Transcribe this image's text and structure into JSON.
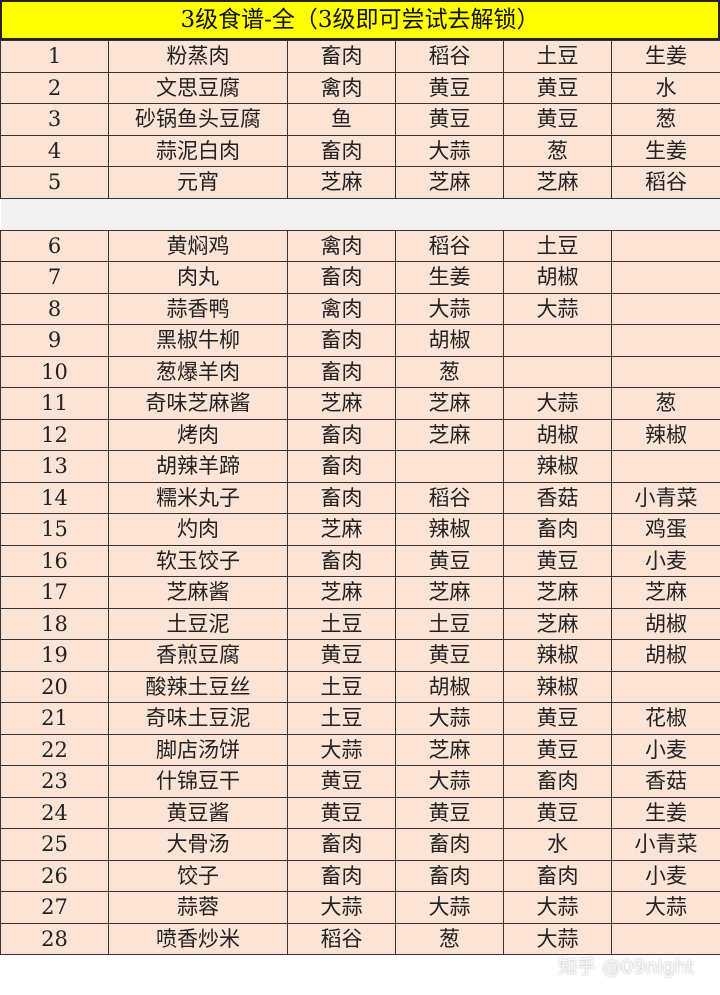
{
  "title": "3级食谱-全（3级即可尝试去解锁）",
  "watermark": "知乎 @09night",
  "colors": {
    "title_bg": "#ffff00",
    "cell_bg": "#fbe3d6",
    "gap_bg": "#f2f2f2"
  },
  "group1": [
    [
      "1",
      "粉蒸肉",
      "畜肉",
      "稻谷",
      "土豆",
      "生姜"
    ],
    [
      "2",
      "文思豆腐",
      "禽肉",
      "黄豆",
      "黄豆",
      "水"
    ],
    [
      "3",
      "砂锅鱼头豆腐",
      "鱼",
      "黄豆",
      "黄豆",
      "葱"
    ],
    [
      "4",
      "蒜泥白肉",
      "畜肉",
      "大蒜",
      "葱",
      "生姜"
    ],
    [
      "5",
      "元宵",
      "芝麻",
      "芝麻",
      "芝麻",
      "稻谷"
    ]
  ],
  "group2": [
    [
      "6",
      "黄焖鸡",
      "禽肉",
      "稻谷",
      "土豆",
      ""
    ],
    [
      "7",
      "肉丸",
      "畜肉",
      "生姜",
      "胡椒",
      ""
    ],
    [
      "8",
      "蒜香鸭",
      "禽肉",
      "大蒜",
      "大蒜",
      ""
    ],
    [
      "9",
      "黑椒牛柳",
      "畜肉",
      "胡椒",
      "",
      ""
    ],
    [
      "10",
      "葱爆羊肉",
      "畜肉",
      "葱",
      "",
      ""
    ],
    [
      "11",
      "奇味芝麻酱",
      "芝麻",
      "芝麻",
      "大蒜",
      "葱"
    ],
    [
      "12",
      "烤肉",
      "畜肉",
      "芝麻",
      "胡椒",
      "辣椒"
    ],
    [
      "13",
      "胡辣羊蹄",
      "畜肉",
      "",
      "辣椒",
      ""
    ],
    [
      "14",
      "糯米丸子",
      "畜肉",
      "稻谷",
      "香菇",
      "小青菜"
    ],
    [
      "15",
      "灼肉",
      "芝麻",
      "辣椒",
      "畜肉",
      "鸡蛋"
    ],
    [
      "16",
      "软玉饺子",
      "畜肉",
      "黄豆",
      "黄豆",
      "小麦"
    ],
    [
      "17",
      "芝麻酱",
      "芝麻",
      "芝麻",
      "芝麻",
      "芝麻"
    ],
    [
      "18",
      "土豆泥",
      "土豆",
      "土豆",
      "芝麻",
      "胡椒"
    ],
    [
      "19",
      "香煎豆腐",
      "黄豆",
      "黄豆",
      "辣椒",
      "胡椒"
    ],
    [
      "20",
      "酸辣土豆丝",
      "土豆",
      "胡椒",
      "辣椒",
      ""
    ],
    [
      "21",
      "奇味土豆泥",
      "土豆",
      "大蒜",
      "黄豆",
      "花椒"
    ],
    [
      "22",
      "脚店汤饼",
      "大蒜",
      "芝麻",
      "黄豆",
      "小麦"
    ],
    [
      "23",
      "什锦豆干",
      "黄豆",
      "大蒜",
      "畜肉",
      "香菇"
    ],
    [
      "24",
      "黄豆酱",
      "黄豆",
      "黄豆",
      "黄豆",
      "生姜"
    ],
    [
      "25",
      "大骨汤",
      "畜肉",
      "畜肉",
      "水",
      "小青菜"
    ],
    [
      "26",
      "饺子",
      "畜肉",
      "畜肉",
      "畜肉",
      "小麦"
    ],
    [
      "27",
      "蒜蓉",
      "大蒜",
      "大蒜",
      "大蒜",
      "大蒜"
    ],
    [
      "28",
      "喷香炒米",
      "稻谷",
      "葱",
      "大蒜",
      ""
    ]
  ]
}
